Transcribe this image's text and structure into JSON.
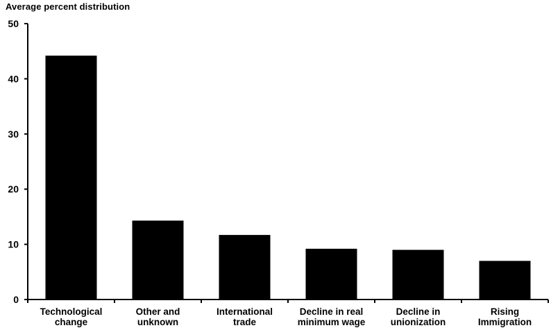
{
  "chart_data": {
    "type": "bar",
    "title": "",
    "xlabel": "",
    "ylabel": "Average percent distribution",
    "ylim": [
      0,
      50
    ],
    "yticks": [
      0,
      10,
      20,
      30,
      40,
      50
    ],
    "grid": false,
    "legend": "none",
    "bar_color": "#000000",
    "categories": [
      [
        "Technological",
        "change"
      ],
      [
        "Other and",
        "unknown"
      ],
      [
        "International",
        "trade"
      ],
      [
        "Decline in real",
        "minimum wage"
      ],
      [
        "Decline in",
        "unionization"
      ],
      [
        "Rising",
        "Immigration"
      ]
    ],
    "values": [
      44.2,
      14.3,
      11.7,
      9.2,
      9.0,
      7.0
    ]
  }
}
